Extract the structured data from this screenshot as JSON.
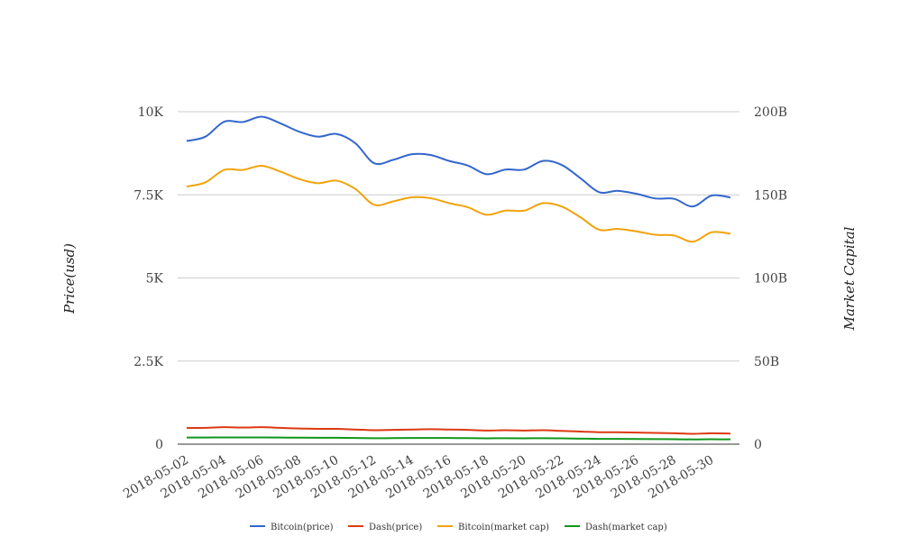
{
  "chart_data": {
    "type": "line",
    "x": [
      "2018-05-02",
      "2018-05-03",
      "2018-05-04",
      "2018-05-05",
      "2018-05-06",
      "2018-05-07",
      "2018-05-08",
      "2018-05-09",
      "2018-05-10",
      "2018-05-11",
      "2018-05-12",
      "2018-05-13",
      "2018-05-14",
      "2018-05-15",
      "2018-05-16",
      "2018-05-17",
      "2018-05-18",
      "2018-05-19",
      "2018-05-20",
      "2018-05-21",
      "2018-05-22",
      "2018-05-23",
      "2018-05-24",
      "2018-05-25",
      "2018-05-26",
      "2018-05-27",
      "2018-05-28",
      "2018-05-29",
      "2018-05-30",
      "2018-05-31"
    ],
    "x_tick_labels": [
      "2018-05-02",
      "2018-05-04",
      "2018-05-06",
      "2018-05-08",
      "2018-05-10",
      "2018-05-12",
      "2018-05-14",
      "2018-05-16",
      "2018-05-18",
      "2018-05-20",
      "2018-05-22",
      "2018-05-24",
      "2018-05-26",
      "2018-05-28",
      "2018-05-30"
    ],
    "ylabel_left": "Price(usd)",
    "ylabel_right": "Market Capital",
    "ylim_left": [
      0,
      10000
    ],
    "ylim_right": [
      0,
      200000000000
    ],
    "left_ticks": [
      {
        "value": 0,
        "label": "0"
      },
      {
        "value": 2500,
        "label": "2.5K"
      },
      {
        "value": 5000,
        "label": "5K"
      },
      {
        "value": 7500,
        "label": "7.5K"
      },
      {
        "value": 10000,
        "label": "10K"
      }
    ],
    "right_ticks": [
      {
        "value": 0,
        "label": "0"
      },
      {
        "value": 50000000000,
        "label": "50B"
      },
      {
        "value": 100000000000,
        "label": "100B"
      },
      {
        "value": 150000000000,
        "label": "150B"
      },
      {
        "value": 200000000000,
        "label": "200B"
      }
    ],
    "grid": true,
    "legend_position": "bottom",
    "series": [
      {
        "name": "Bitcoin(price)",
        "axis": "left",
        "color": "#3366cc",
        "values": [
          9120,
          9250,
          9700,
          9690,
          9850,
          9650,
          9400,
          9250,
          9330,
          9050,
          8450,
          8550,
          8720,
          8700,
          8520,
          8380,
          8120,
          8260,
          8260,
          8520,
          8400,
          8000,
          7580,
          7620,
          7530,
          7390,
          7380,
          7150,
          7480,
          7420
        ]
      },
      {
        "name": "Dash(price)",
        "axis": "left",
        "color": "#dc3912",
        "values": [
          490,
          490,
          510,
          500,
          510,
          490,
          470,
          460,
          460,
          440,
          420,
          430,
          440,
          450,
          440,
          430,
          410,
          420,
          410,
          420,
          400,
          380,
          360,
          360,
          350,
          340,
          330,
          310,
          330,
          320
        ]
      },
      {
        "name": "Bitcoin(market cap)",
        "axis": "right",
        "color": "#f0a30a",
        "values": [
          155000000000,
          157500000000,
          165000000000,
          165000000000,
          167500000000,
          164000000000,
          159500000000,
          157000000000,
          158500000000,
          153500000000,
          144000000000,
          146000000000,
          148500000000,
          148000000000,
          145000000000,
          142500000000,
          138000000000,
          140500000000,
          140500000000,
          145000000000,
          143000000000,
          136500000000,
          129000000000,
          129500000000,
          128000000000,
          126000000000,
          125500000000,
          121800000000,
          127500000000,
          126600000000
        ]
      },
      {
        "name": "Dash(market cap)",
        "axis": "right",
        "color": "#109618",
        "values": [
          4000000000,
          4000000000,
          4100000000,
          4050000000,
          4100000000,
          4000000000,
          3900000000,
          3850000000,
          3850000000,
          3750000000,
          3600000000,
          3650000000,
          3700000000,
          3750000000,
          3700000000,
          3650000000,
          3550000000,
          3600000000,
          3550000000,
          3600000000,
          3500000000,
          3350000000,
          3200000000,
          3200000000,
          3150000000,
          3050000000,
          3000000000,
          2850000000,
          2950000000,
          2900000000
        ]
      }
    ]
  }
}
